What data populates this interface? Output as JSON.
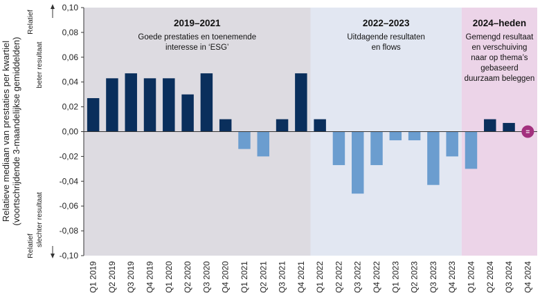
{
  "chart_data": {
    "type": "bar",
    "ylabel_lines": [
      "Relatieve mediaan van prestaties per kwartiel",
      "(voortschrijdende 3-maandelijkse gemiddelden)"
    ],
    "ylim": [
      -0.1,
      0.1
    ],
    "yticks": [
      0.1,
      0.08,
      0.06,
      0.04,
      0.02,
      0.0,
      -0.02,
      -0.04,
      -0.06,
      -0.08,
      -0.1
    ],
    "ytick_labels": [
      "0,10",
      "0,08",
      "0,06",
      "0,04",
      "0,02",
      "0,00",
      "-0,02",
      "-0,04",
      "-0,06",
      "-0,08",
      "-0,10"
    ],
    "axis_annotations": {
      "top": [
        "Relatief",
        "beter resultaat"
      ],
      "bottom": [
        "Relatief",
        "slechter resultaat"
      ]
    },
    "categories": [
      "Q1 2019",
      "Q2 2019",
      "Q3 2019",
      "Q4 2019",
      "Q1 2020",
      "Q2 2020",
      "Q3 2020",
      "Q4 2020",
      "Q1 2021",
      "Q2 2021",
      "Q3 2021",
      "Q4 2021",
      "Q1 2022",
      "Q2 2022",
      "Q3 2022",
      "Q4 2022",
      "Q1 2023",
      "Q2 2023",
      "Q3 2023",
      "Q4 2023",
      "Q1 2024",
      "Q2 2024",
      "Q3 2024",
      "Q4 2024"
    ],
    "values": [
      0.027,
      0.043,
      0.047,
      0.043,
      0.043,
      0.03,
      0.047,
      0.01,
      -0.014,
      -0.02,
      0.01,
      0.047,
      0.01,
      -0.027,
      -0.05,
      -0.027,
      -0.007,
      -0.007,
      -0.043,
      -0.02,
      -0.03,
      0.01,
      0.007,
      0.0
    ],
    "colors": {
      "positive": "#0a2f5c",
      "negative": "#6b9dcf",
      "equal_marker": "#a3307e"
    },
    "equal_marker_label": "=",
    "equal_marker_index": 23,
    "periods": [
      {
        "title": "2019–2021",
        "lines": [
          "Goede prestaties en toenemende",
          "interesse in ‘ESG’"
        ],
        "start": 0,
        "end": 11,
        "color": "#dddbe1"
      },
      {
        "title": "2022–2023",
        "lines": [
          "Uitdagende resultaten",
          "en flows"
        ],
        "start": 12,
        "end": 19,
        "color": "#e2e7f2"
      },
      {
        "title": "2024–heden",
        "lines": [
          "Gemengd resultaat",
          "en verschuiving",
          "naar op thema’s",
          "gebaseerd",
          "duurzaam beleggen"
        ],
        "start": 20,
        "end": 23,
        "color": "#ecd4e8"
      }
    ]
  }
}
